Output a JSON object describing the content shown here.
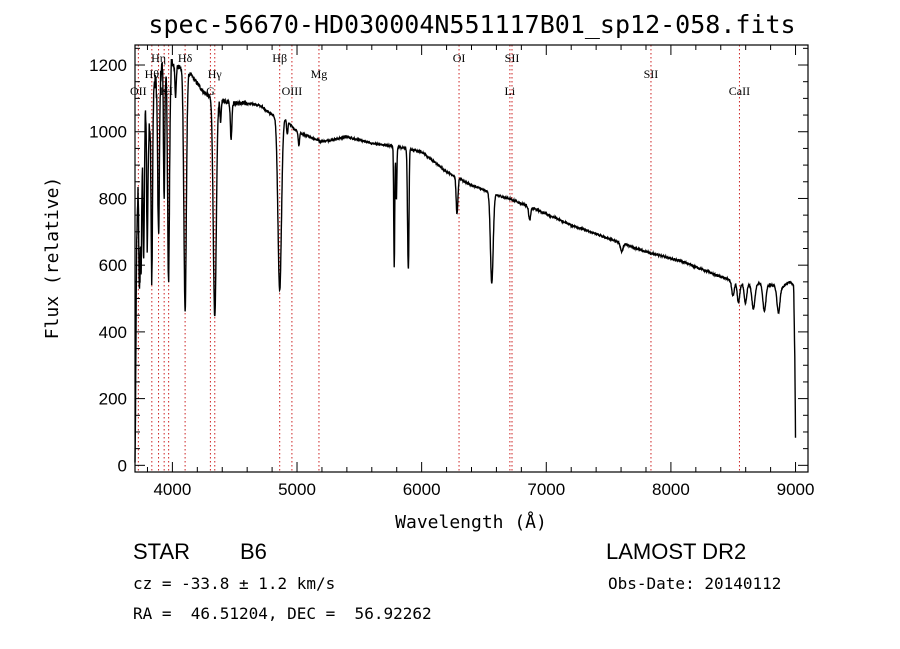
{
  "title": "spec-56670-HD030004N551117B01_sp12-058.fits",
  "info": {
    "object_class": "STAR",
    "subclass": "B6",
    "survey": "LAMOST DR2",
    "redshift_text": "cz = -33.8 ± 1.2 km/s",
    "obs_date_text": "Obs-Date: 20140112",
    "coords_text": "RA =  46.51204, DEC =  56.92262"
  },
  "chart_data": {
    "type": "line",
    "title": "spec-56670-HD030004N551117B01_sp12-058.fits",
    "xlabel": "Wavelength (Å)",
    "ylabel": "Flux (relative)",
    "xlim": [
      3700,
      9100
    ],
    "ylim": [
      -20,
      1260
    ],
    "x_ticks": [
      4000,
      5000,
      6000,
      7000,
      8000,
      9000
    ],
    "y_ticks": [
      0,
      200,
      400,
      600,
      800,
      1000,
      1200
    ],
    "grid": false,
    "line_color": "#000000",
    "marker_color": "#cc2222",
    "continuum": [
      [
        3700,
        0
      ],
      [
        3705,
        180
      ],
      [
        3712,
        620
      ],
      [
        3725,
        840
      ],
      [
        3740,
        680
      ],
      [
        3755,
        900
      ],
      [
        3770,
        1020
      ],
      [
        3790,
        1080
      ],
      [
        3810,
        980
      ],
      [
        3830,
        1100
      ],
      [
        3850,
        1140
      ],
      [
        3870,
        1150
      ],
      [
        3900,
        1180
      ],
      [
        3930,
        1200
      ],
      [
        3970,
        1210
      ],
      [
        4000,
        1200
      ],
      [
        4040,
        1195
      ],
      [
        4080,
        1190
      ],
      [
        4150,
        1170
      ],
      [
        4200,
        1145
      ],
      [
        4250,
        1120
      ],
      [
        4300,
        1105
      ],
      [
        4400,
        1095
      ],
      [
        4500,
        1085
      ],
      [
        4600,
        1085
      ],
      [
        4700,
        1080
      ],
      [
        4800,
        1050
      ],
      [
        4900,
        1040
      ],
      [
        5000,
        1000
      ],
      [
        5100,
        985
      ],
      [
        5200,
        970
      ],
      [
        5400,
        985
      ],
      [
        5600,
        965
      ],
      [
        5800,
        955
      ],
      [
        6000,
        940
      ],
      [
        6200,
        880
      ],
      [
        6400,
        840
      ],
      [
        6600,
        810
      ],
      [
        6700,
        800
      ],
      [
        6900,
        770
      ],
      [
        7200,
        720
      ],
      [
        7500,
        680
      ],
      [
        7800,
        640
      ],
      [
        8100,
        610
      ],
      [
        8400,
        565
      ],
      [
        8600,
        540
      ],
      [
        8700,
        545
      ],
      [
        8800,
        540
      ],
      [
        8900,
        535
      ],
      [
        8950,
        550
      ],
      [
        8985,
        540
      ],
      [
        8995,
        300
      ],
      [
        9000,
        80
      ]
    ],
    "absorption_features": [
      {
        "center": 3735,
        "depth": 220,
        "width": 4
      },
      {
        "center": 3750,
        "depth": 240,
        "width": 4
      },
      {
        "center": 3770,
        "depth": 400,
        "width": 5
      },
      {
        "center": 3798,
        "depth": 380,
        "width": 5
      },
      {
        "center": 3835,
        "depth": 560,
        "width": 6
      },
      {
        "center": 3889,
        "depth": 480,
        "width": 7
      },
      {
        "center": 3934,
        "depth": 420,
        "width": 5
      },
      {
        "center": 3969,
        "depth": 650,
        "width": 8
      },
      {
        "center": 4026,
        "depth": 90,
        "width": 5
      },
      {
        "center": 4102,
        "depth": 720,
        "width": 10
      },
      {
        "center": 4340,
        "depth": 660,
        "width": 12
      },
      {
        "center": 4387,
        "depth": 70,
        "width": 5
      },
      {
        "center": 4471,
        "depth": 110,
        "width": 6
      },
      {
        "center": 4861,
        "depth": 520,
        "width": 14
      },
      {
        "center": 4922,
        "depth": 40,
        "width": 5
      },
      {
        "center": 5015,
        "depth": 40,
        "width": 5
      },
      {
        "center": 5780,
        "depth": 360,
        "width": 4
      },
      {
        "center": 5797,
        "depth": 160,
        "width": 4
      },
      {
        "center": 5890,
        "depth": 250,
        "width": 5
      },
      {
        "center": 5896,
        "depth": 200,
        "width": 4
      },
      {
        "center": 6284,
        "depth": 110,
        "width": 7
      },
      {
        "center": 6563,
        "depth": 270,
        "width": 11
      },
      {
        "center": 6867,
        "depth": 40,
        "width": 8
      },
      {
        "center": 7605,
        "depth": 25,
        "width": 10
      },
      {
        "center": 8498,
        "depth": 45,
        "width": 10
      },
      {
        "center": 8542,
        "depth": 60,
        "width": 10
      },
      {
        "center": 8598,
        "depth": 55,
        "width": 10
      },
      {
        "center": 8662,
        "depth": 75,
        "width": 12
      },
      {
        "center": 8750,
        "depth": 80,
        "width": 12
      },
      {
        "center": 8863,
        "depth": 80,
        "width": 12
      }
    ],
    "line_markers": [
      {
        "wavelength": 3727,
        "label": "OII",
        "row": 3
      },
      {
        "wavelength": 3835,
        "label": "Hθ",
        "row": 1
      },
      {
        "wavelength": 3889,
        "label": "Hη",
        "row": 0
      },
      {
        "wavelength": 3934,
        "label": "K",
        "row": 3
      },
      {
        "wavelength": 3970,
        "label": "H",
        "row": 3
      },
      {
        "wavelength": 4102,
        "label": "Hδ",
        "row": 0
      },
      {
        "wavelength": 4305,
        "label": "G",
        "row": 3
      },
      {
        "wavelength": 4340,
        "label": "Hγ",
        "row": 1
      },
      {
        "wavelength": 4861,
        "label": "Hβ",
        "row": 0
      },
      {
        "wavelength": 4959,
        "label": "OIII",
        "row": 3
      },
      {
        "wavelength": 5176,
        "label": "Mg",
        "row": 1
      },
      {
        "wavelength": 6300,
        "label": "OI",
        "row": 0
      },
      {
        "wavelength": 6708,
        "label": "Li",
        "row": 3
      },
      {
        "wavelength": 6725,
        "label": "SII",
        "row": 0
      },
      {
        "wavelength": 7840,
        "label": "SII",
        "row": 1
      },
      {
        "wavelength": 8550,
        "label": "CaII",
        "row": 3
      }
    ]
  }
}
